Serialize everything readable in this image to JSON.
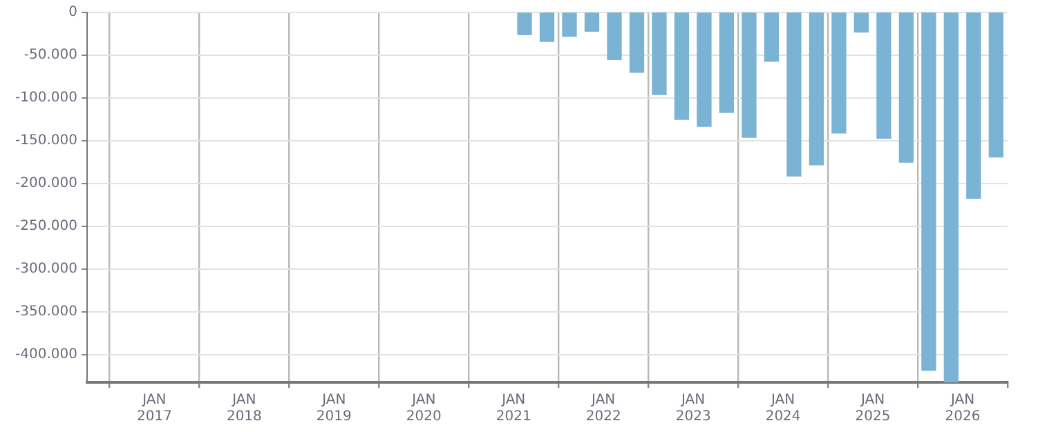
{
  "chart_data": {
    "type": "bar",
    "x": [
      "2021-02-15",
      "2021-05-15",
      "2021-08-15",
      "2021-11-15",
      "2022-02-15",
      "2022-05-15",
      "2022-08-15",
      "2022-11-15",
      "2023-02-15",
      "2023-05-15",
      "2023-08-15",
      "2023-11-15",
      "2024-02-15",
      "2024-05-15",
      "2024-08-15",
      "2024-11-15",
      "2025-02-15",
      "2025-05-15",
      "2025-08-15",
      "2025-11-15",
      "2026-02-15",
      "2026-05-15"
    ],
    "values": [
      -26000,
      -34000,
      -28000,
      -22000,
      -55000,
      -70000,
      -96000,
      -125000,
      -133000,
      -117000,
      -146000,
      -57000,
      -191000,
      -178000,
      -141000,
      -23000,
      -147000,
      -175000,
      -418000,
      -432000,
      -217000,
      -169000
    ],
    "color": "#7ab3d4",
    "ylim": [
      -432000,
      0
    ],
    "yticks": [
      0,
      {
        "value": -50000,
        "label": "-50.000"
      },
      {
        "value": -100000,
        "label": "-100.000"
      },
      {
        "value": -150000,
        "label": "-150.000"
      },
      {
        "value": -200000,
        "label": "-200.000"
      },
      {
        "value": -250000,
        "label": "-250.000"
      },
      {
        "value": -300000,
        "label": "-300.000"
      },
      {
        "value": -350000,
        "label": "-350.000"
      },
      {
        "value": -400000,
        "label": "-400.000"
      }
    ],
    "xlim": [
      "2016-04",
      "2026-07"
    ],
    "xticks": [
      {
        "value": "2017-01",
        "label": "JAN 2017"
      },
      {
        "value": "2018-01",
        "label": "JAN 2018"
      },
      {
        "value": "2019-01",
        "label": "JAN 2019"
      },
      {
        "value": "2020-01",
        "label": "JAN 2020"
      },
      {
        "value": "2021-01",
        "label": "JAN 2021"
      },
      {
        "value": "2022-01",
        "label": "JAN 2022"
      },
      {
        "value": "2023-01",
        "label": "JAN 2023"
      },
      {
        "value": "2024-01",
        "label": "JAN 2024"
      },
      {
        "value": "2025-01",
        "label": "JAN 2025"
      },
      {
        "value": "2026-01",
        "label": "JAN 2026"
      }
    ],
    "grid": true,
    "legend": false
  }
}
